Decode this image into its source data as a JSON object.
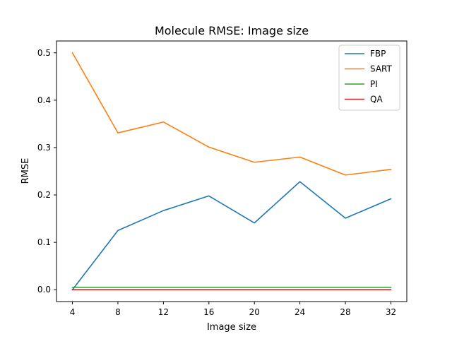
{
  "chart_data": {
    "type": "line",
    "title": "Molecule RMSE: Image size",
    "xlabel": "Image size",
    "ylabel": "RMSE",
    "x": [
      4,
      8,
      12,
      16,
      20,
      24,
      28,
      32
    ],
    "xticks": [
      4,
      8,
      12,
      16,
      20,
      24,
      28,
      32
    ],
    "yticks": [
      0.0,
      0.1,
      0.2,
      0.3,
      0.4,
      0.5
    ],
    "ytick_labels": [
      "0.0",
      "0.1",
      "0.2",
      "0.3",
      "0.4",
      "0.5"
    ],
    "xlim": [
      2.6,
      33.4
    ],
    "ylim": [
      -0.025,
      0.525
    ],
    "grid": false,
    "legend_position": "top-right",
    "series": [
      {
        "name": "FBP",
        "color": "#1f77b4",
        "values": [
          0.0,
          0.125,
          0.167,
          0.198,
          0.141,
          0.228,
          0.151,
          0.192
        ]
      },
      {
        "name": "SART",
        "color": "#ff7f0e",
        "values": [
          0.5,
          0.331,
          0.354,
          0.301,
          0.269,
          0.28,
          0.242,
          0.254
        ]
      },
      {
        "name": "PI",
        "color": "#2ca02c",
        "values": [
          0.005,
          0.005,
          0.005,
          0.005,
          0.005,
          0.005,
          0.005,
          0.005
        ]
      },
      {
        "name": "QA",
        "color": "#d62728",
        "values": [
          0.0,
          0.0,
          0.0,
          0.0,
          0.0,
          0.0,
          0.0,
          0.0
        ]
      }
    ]
  }
}
